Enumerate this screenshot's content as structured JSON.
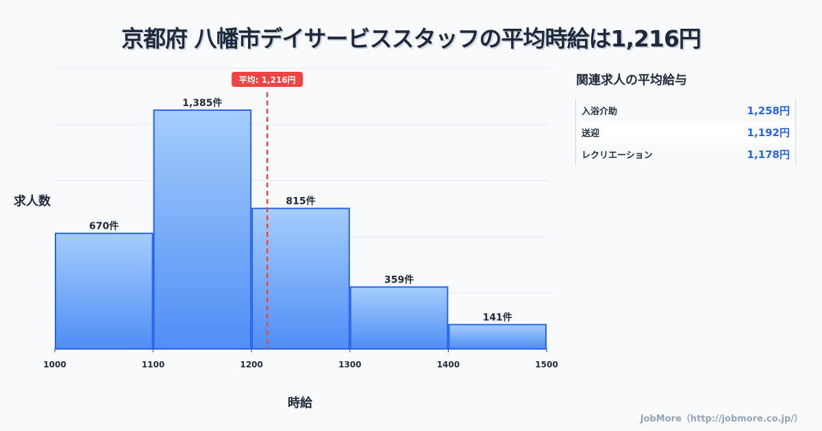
{
  "title": "京都府 八幡市デイサービススタッフの平均時給は1,216円",
  "chart_data": {
    "type": "bar",
    "title": "京都府 八幡市デイサービススタッフの平均時給は1,216円",
    "xlabel": "時給",
    "ylabel": "求人数",
    "bins": [
      [
        1000,
        1100
      ],
      [
        1100,
        1200
      ],
      [
        1200,
        1300
      ],
      [
        1300,
        1400
      ],
      [
        1400,
        1500
      ]
    ],
    "values": [
      670,
      1385,
      815,
      359,
      141
    ],
    "value_labels": [
      "670件",
      "1,385件",
      "815件",
      "359件",
      "141件"
    ],
    "x_ticks": [
      "1000",
      "1100",
      "1200",
      "1300",
      "1400",
      "1500"
    ],
    "xlim": [
      1000,
      1500
    ],
    "ylim": [
      0,
      1627
    ],
    "grid": true,
    "mean": 1216,
    "mean_label": "平均: 1,216円"
  },
  "colors": {
    "bar_top": "#a5cdfc",
    "bar_bottom": "#4f8ef5",
    "bar_stroke": "#2563eb",
    "mean": "#ef4444"
  },
  "panel": {
    "title": "関連求人の平均給与",
    "items": [
      {
        "label": "入浴介助",
        "value": "1,258円"
      },
      {
        "label": "送迎",
        "value": "1,192円"
      },
      {
        "label": "レクリエーション",
        "value": "1,178円"
      }
    ]
  },
  "footer": "JobMore（http://jobmore.co.jp/）"
}
